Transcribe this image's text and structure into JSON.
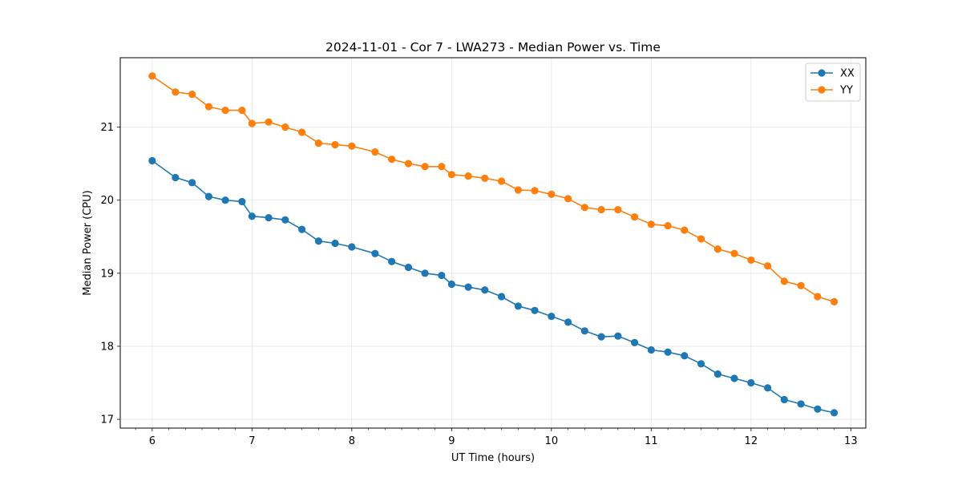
{
  "chart_data": {
    "type": "line",
    "title": "2024-11-01 - Cor 7 - LWA273 - Median Power vs. Time",
    "xlabel": "UT Time (hours)",
    "ylabel": "Median Power (CPU)",
    "xlim": [
      5.68,
      13.15
    ],
    "ylim": [
      16.88,
      21.95
    ],
    "xticks": [
      6,
      7,
      8,
      9,
      10,
      11,
      12,
      13
    ],
    "xtick_labels": [
      "6",
      "7",
      "8",
      "9",
      "10",
      "11",
      "12",
      "13"
    ],
    "yticks": [
      17,
      18,
      19,
      20,
      21
    ],
    "ytick_labels": [
      "17",
      "18",
      "19",
      "20",
      "21"
    ],
    "grid": true,
    "legend_position": "top-right",
    "x": [
      6.0,
      6.233,
      6.4,
      6.567,
      6.733,
      6.9,
      7.0,
      7.167,
      7.333,
      7.5,
      7.667,
      7.833,
      8.0,
      8.233,
      8.4,
      8.567,
      8.733,
      8.9,
      9.0,
      9.167,
      9.333,
      9.5,
      9.667,
      9.833,
      10.0,
      10.167,
      10.333,
      10.5,
      10.667,
      10.833,
      11.0,
      11.167,
      11.333,
      11.5,
      11.667,
      11.833,
      12.0,
      12.167,
      12.333,
      12.5,
      12.667,
      12.833
    ],
    "series": [
      {
        "name": "XX",
        "color": "#1f77b4",
        "values": [
          20.54,
          20.31,
          20.24,
          20.05,
          20.0,
          19.98,
          19.78,
          19.76,
          19.73,
          19.6,
          19.44,
          19.41,
          19.36,
          19.27,
          19.16,
          19.08,
          19.0,
          18.97,
          18.85,
          18.81,
          18.77,
          18.68,
          18.55,
          18.49,
          18.41,
          18.33,
          18.21,
          18.13,
          18.14,
          18.05,
          17.95,
          17.92,
          17.87,
          17.76,
          17.62,
          17.56,
          17.5,
          17.43,
          17.27,
          17.21,
          17.14,
          17.09
        ]
      },
      {
        "name": "YY",
        "color": "#ff7f0e",
        "values": [
          21.7,
          21.48,
          21.45,
          21.28,
          21.23,
          21.23,
          21.05,
          21.07,
          21.0,
          20.93,
          20.78,
          20.76,
          20.74,
          20.66,
          20.56,
          20.5,
          20.46,
          20.46,
          20.35,
          20.33,
          20.3,
          20.26,
          20.14,
          20.13,
          20.08,
          20.02,
          19.9,
          19.87,
          19.87,
          19.77,
          19.67,
          19.65,
          19.59,
          19.47,
          19.33,
          19.27,
          19.18,
          19.1,
          18.89,
          18.83,
          18.68,
          18.61
        ]
      }
    ]
  }
}
